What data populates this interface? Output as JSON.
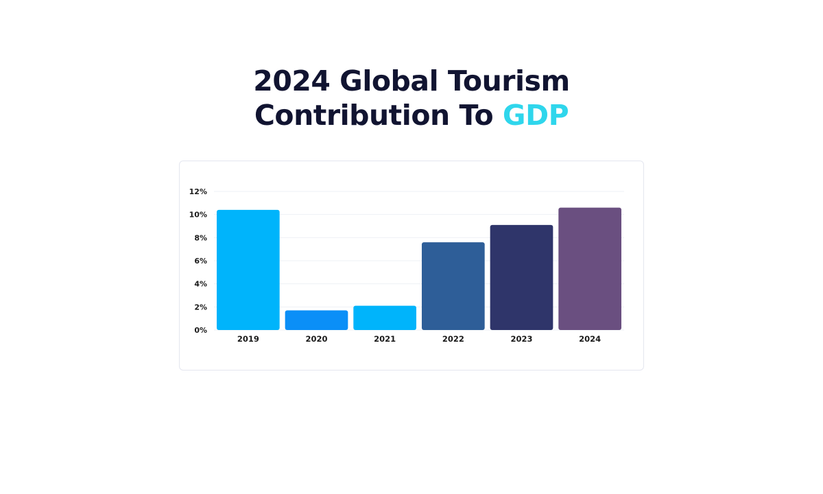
{
  "title": {
    "line1": "2024 Global Tourism",
    "line2_prefix": "Contribution To ",
    "line2_accent": "GDP"
  },
  "colors": {
    "title": "#111431",
    "accent": "#2fd6ec"
  },
  "chart_data": {
    "type": "bar",
    "categories": [
      "2019",
      "2020",
      "2021",
      "2022",
      "2023",
      "2024"
    ],
    "values": [
      10.4,
      1.7,
      2.1,
      7.6,
      9.1,
      10.6
    ],
    "ylim": [
      0,
      12
    ],
    "yticks": [
      0,
      2,
      4,
      6,
      8,
      10,
      12
    ],
    "ytick_labels": [
      "0%",
      "2%",
      "4%",
      "6%",
      "8%",
      "10%",
      "12%"
    ],
    "bar_colors": [
      "#00b4fb",
      "#0b8ff7",
      "#00b4fb",
      "#2e5e98",
      "#2f356a",
      "#6a4f80"
    ],
    "grid": true,
    "legend": "none",
    "xlabel": "",
    "ylabel": ""
  }
}
